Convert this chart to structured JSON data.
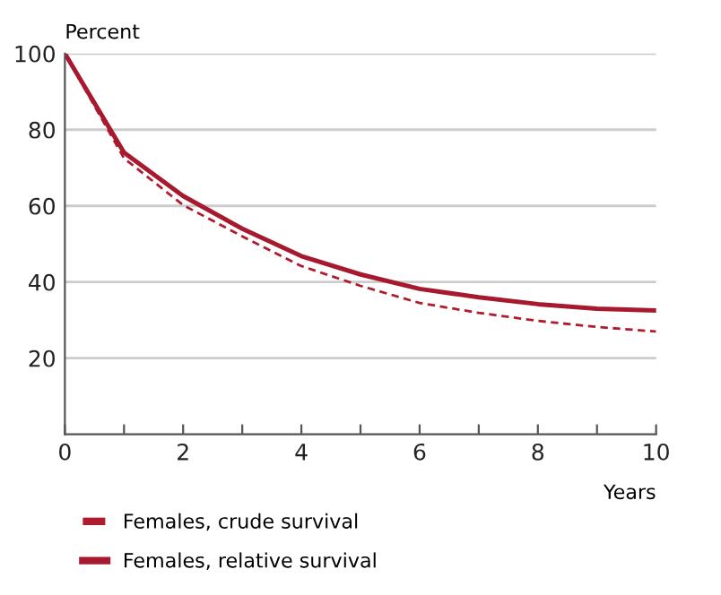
{
  "chart_data": {
    "type": "line",
    "ylabel": "Percent",
    "xlabel": "Years",
    "x": [
      0,
      1,
      2,
      3,
      4,
      5,
      6,
      7,
      8,
      9,
      10
    ],
    "series": [
      {
        "name": "Females, crude survival",
        "color": "#b01c2e",
        "line_style": "dashed",
        "values": [
          100,
          72.5,
          60.2,
          52,
          44.2,
          39,
          34.5,
          31.9,
          29.8,
          28.2,
          27
        ]
      },
      {
        "name": "Females, relative survival",
        "color": "#a6192e",
        "line_style": "solid",
        "values": [
          100,
          74,
          62.6,
          54,
          46.8,
          42,
          38.2,
          36,
          34.2,
          33,
          32.5
        ]
      }
    ],
    "xlim": [
      0,
      10
    ],
    "xticks": [
      0,
      {
        "value": 1,
        "label": null
      },
      2,
      {
        "value": 3,
        "label": null
      },
      4,
      {
        "value": 5,
        "label": null
      },
      6,
      {
        "value": 7,
        "label": null
      },
      8,
      {
        "value": 9,
        "label": null
      },
      10
    ],
    "ylim": [
      0,
      100
    ],
    "yticks": [
      20,
      40,
      60,
      80,
      100
    ],
    "grid": "y",
    "legend": "bottom left",
    "marker": "none"
  }
}
